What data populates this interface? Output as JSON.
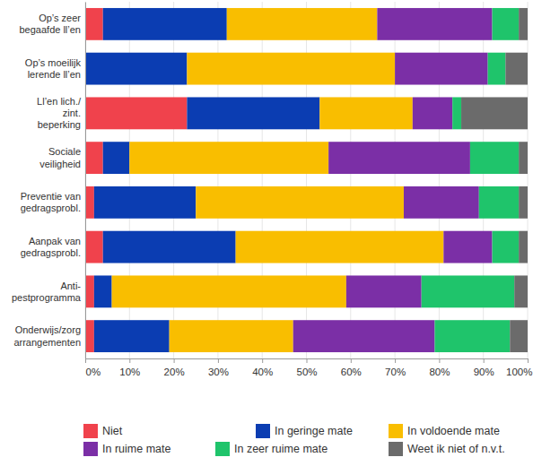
{
  "chart_data": {
    "type": "bar",
    "orientation": "horizontal",
    "stacked": true,
    "grid": true,
    "legend": "bottom",
    "categories": [
      "Op’s zeer\nbegaafde ll’en",
      "Op’s moeilijk\nlerende ll’en",
      "Ll’en lich./\nzint.\nbeperking",
      "Sociale\nveiligheid",
      "Preventie van\ngedragsprobl.",
      "Aanpak van\ngedragsprobl.",
      "Anti-\npestprogramma",
      "Onderwijs/zorg\narrangementen"
    ],
    "series": [
      {
        "name": "Niet",
        "color": "#f0424c",
        "values": [
          4,
          0,
          23,
          4,
          2,
          4,
          2,
          2
        ]
      },
      {
        "name": "In geringe mate",
        "color": "#0b3db2",
        "values": [
          28,
          23,
          30,
          6,
          23,
          30,
          4,
          17
        ]
      },
      {
        "name": "In voldoende mate",
        "color": "#f9be00",
        "values": [
          34,
          47,
          21,
          45,
          47,
          47,
          53,
          28
        ]
      },
      {
        "name": "In ruime mate",
        "color": "#7b2fa6",
        "values": [
          26,
          21,
          9,
          32,
          17,
          11,
          17,
          32
        ]
      },
      {
        "name": "In zeer ruime mate",
        "color": "#1fc46b",
        "values": [
          6,
          4,
          2,
          11,
          9,
          6,
          21,
          17
        ]
      },
      {
        "name": "Weet ik niet of n.v.t.",
        "color": "#6b6b6b",
        "values": [
          2,
          5,
          15,
          2,
          2,
          2,
          3,
          4
        ]
      }
    ],
    "xlim": [
      0,
      100
    ],
    "xticks": [
      {
        "value": 0,
        "label": "0%"
      },
      {
        "value": 10,
        "label": "10%"
      },
      {
        "value": 20,
        "label": "20%"
      },
      {
        "value": 30,
        "label": "30%"
      },
      {
        "value": 40,
        "label": "40%"
      },
      {
        "value": 50,
        "label": "50%"
      },
      {
        "value": 60,
        "label": "60%"
      },
      {
        "value": 70,
        "label": "70%"
      },
      {
        "value": 80,
        "label": "80%"
      },
      {
        "value": 90,
        "label": "90%"
      },
      {
        "value": 100,
        "label": "100%"
      }
    ]
  }
}
